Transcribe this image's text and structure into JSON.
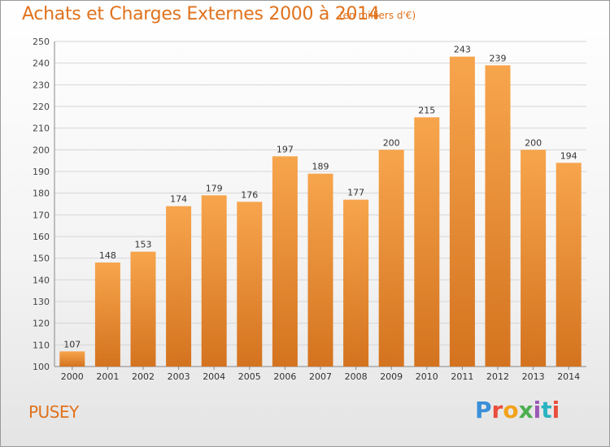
{
  "header": {
    "title": "Achats et Charges Externes 2000 à 2014",
    "subtitle": "(en milliers d'€)"
  },
  "footer": {
    "commune": "PUSEY",
    "logo_text": "Proxiti"
  },
  "colors": {
    "accent": "#e0721d",
    "bar_top": "#f7a54d",
    "bar_bottom": "#d4731f"
  },
  "chart_data": {
    "type": "bar",
    "title": "Achats et Charges Externes 2000 à 2014",
    "subtitle": "(en milliers d'€)",
    "categories": [
      "2000",
      "2001",
      "2002",
      "2003",
      "2004",
      "2005",
      "2006",
      "2007",
      "2008",
      "2009",
      "2010",
      "2011",
      "2012",
      "2013",
      "2014"
    ],
    "values": [
      107,
      148,
      153,
      174,
      179,
      176,
      197,
      189,
      177,
      200,
      215,
      243,
      239,
      200,
      194
    ],
    "ylim": [
      100,
      250
    ],
    "yticks": [
      100,
      110,
      120,
      130,
      140,
      150,
      160,
      170,
      180,
      190,
      200,
      210,
      220,
      230,
      240,
      250
    ],
    "grid": true,
    "xlabel": "",
    "ylabel": ""
  }
}
